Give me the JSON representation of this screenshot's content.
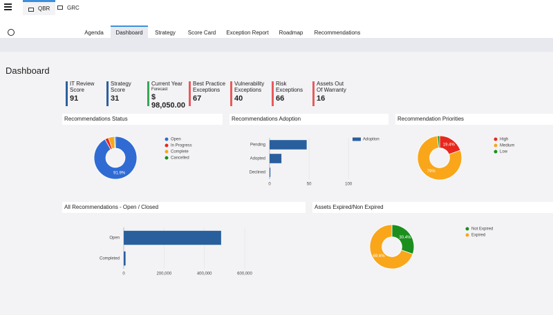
{
  "header": {
    "tabs": [
      "QBR",
      "GRC"
    ]
  },
  "nav": {
    "tabs": [
      "Agenda",
      "Dashboard",
      "Strategy",
      "Score Card",
      "Exception Report",
      "Roadmap",
      "Recommendations"
    ],
    "active": 1
  },
  "page_title": "Dashboard",
  "kpis": [
    {
      "label": "IT Review Score",
      "value": "91",
      "color": "#2a5f9e"
    },
    {
      "label": "Strategy Score",
      "value": "31",
      "color": "#2a5f9e"
    },
    {
      "label": "Current Year",
      "sublabel": "Forecast",
      "value": "$ 98,050.00",
      "color": "#3aa655"
    },
    {
      "label": "Best Practice Exceptions",
      "value": "67",
      "color": "#e85a5a"
    },
    {
      "label": "Vulnerability Exceptions",
      "value": "40",
      "color": "#e85a5a"
    },
    {
      "label": "Risk Exceptions",
      "value": "66",
      "color": "#e85a5a"
    },
    {
      "label": "Assets Out Of Warranty",
      "value": "16",
      "color": "#e85a5a"
    }
  ],
  "chart_data": [
    {
      "type": "pie",
      "title": "Recommendations Status",
      "donut": true,
      "categories": [
        "Open",
        "In Progress",
        "Complete",
        "Cancelled"
      ],
      "values": [
        91.9,
        2.7,
        4.6,
        0.8
      ],
      "value_labels": [
        "91.9%",
        null,
        null,
        null
      ],
      "colors": [
        "#2f6bd3",
        "#e8281c",
        "#f9a61a",
        "#1b8f1d"
      ]
    },
    {
      "type": "bar",
      "title": "Recommendations Adoption",
      "orientation": "horizontal",
      "categories": [
        "Pending",
        "Adopted",
        "Declined"
      ],
      "series": [
        {
          "name": "Adoption",
          "color": "#2a5f9e",
          "values": [
            47,
            15,
            1
          ]
        }
      ],
      "xlim": [
        0,
        120
      ],
      "xticks": [
        0,
        50,
        100
      ],
      "grid": true
    },
    {
      "type": "pie",
      "title": "Recommendation Priorities",
      "donut": true,
      "categories": [
        "High",
        "Medium",
        "Low"
      ],
      "values": [
        19.4,
        79,
        1.6
      ],
      "value_labels": [
        "19.4%",
        "79%",
        null
      ],
      "colors": [
        "#e8281c",
        "#f9a61a",
        "#1b8f1d"
      ]
    },
    {
      "type": "bar",
      "title": "All Recommendations - Open / Closed",
      "orientation": "horizontal",
      "categories": [
        "Open",
        "Completed"
      ],
      "values": [
        483000,
        9000
      ],
      "color": "#2a5f9e",
      "xlim": [
        0,
        600000
      ],
      "xticks": [
        0,
        {
          "value": 200000,
          "label": "200,000"
        },
        {
          "value": 400000,
          "label": "400,000"
        },
        {
          "value": 600000,
          "label": "600,000"
        }
      ],
      "grid": true
    },
    {
      "type": "pie",
      "title": "Assets Expired/Non Expired",
      "donut": true,
      "categories": [
        "Not Expired",
        "Expired"
      ],
      "values": [
        30.4,
        69.6
      ],
      "value_labels": [
        "30.4%",
        "69.6%"
      ],
      "colors": [
        "#1b8f1d",
        "#f9a61a"
      ]
    }
  ]
}
